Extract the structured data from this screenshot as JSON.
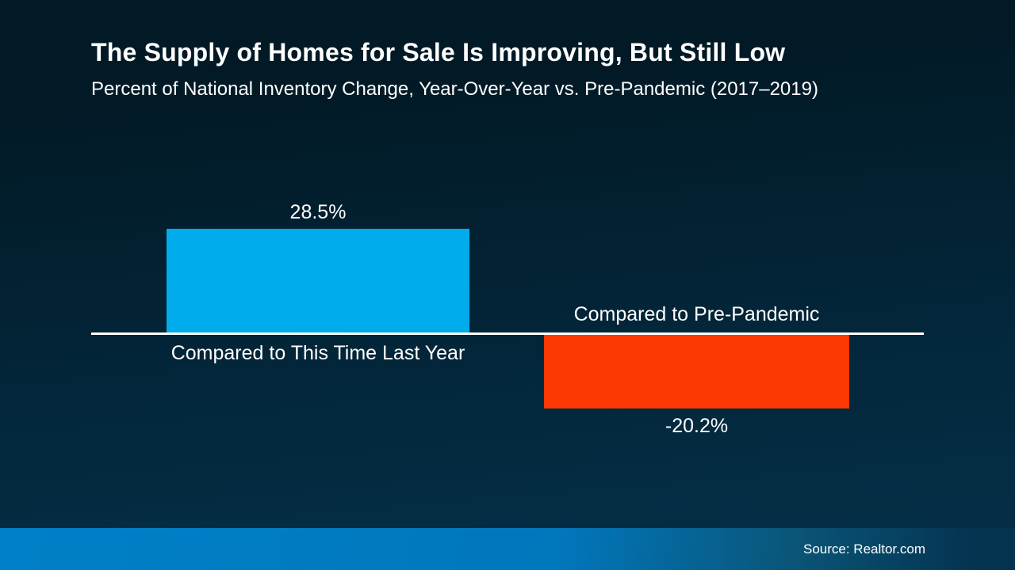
{
  "slide": {
    "title": "The Supply of Homes for Sale Is Improving, But Still Low",
    "subtitle": "Percent of National Inventory Change, Year-Over-Year vs. Pre-Pandemic (2017–2019)",
    "source": "Source: Realtor.com"
  },
  "colors": {
    "background_top": "#021A26",
    "background_bottom": "#053049",
    "bar_positive": "#00ACEC",
    "bar_negative": "#FC3903",
    "baseline": "#FFFFFF",
    "footer_gradient_left": "#0080C8",
    "footer_gradient_right": "#043350",
    "text": "#FFFFFF"
  },
  "chart_data": {
    "type": "bar",
    "title": "The Supply of Homes for Sale Is Improving, But Still Low",
    "subtitle": "Percent of National Inventory Change, Year-Over-Year vs. Pre-Pandemic (2017–2019)",
    "categories": [
      "Compared to This Time Last Year",
      "Compared to Pre-Pandemic"
    ],
    "values": [
      28.5,
      -20.2
    ],
    "value_labels": [
      "28.5%",
      "-20.2%"
    ],
    "series_colors": [
      "#00ACEC",
      "#FC3903"
    ],
    "baseline_value": 0,
    "ylim": [
      -25,
      32
    ],
    "grid": false,
    "legend": false,
    "annotations": [
      "Source: Realtor.com"
    ]
  }
}
